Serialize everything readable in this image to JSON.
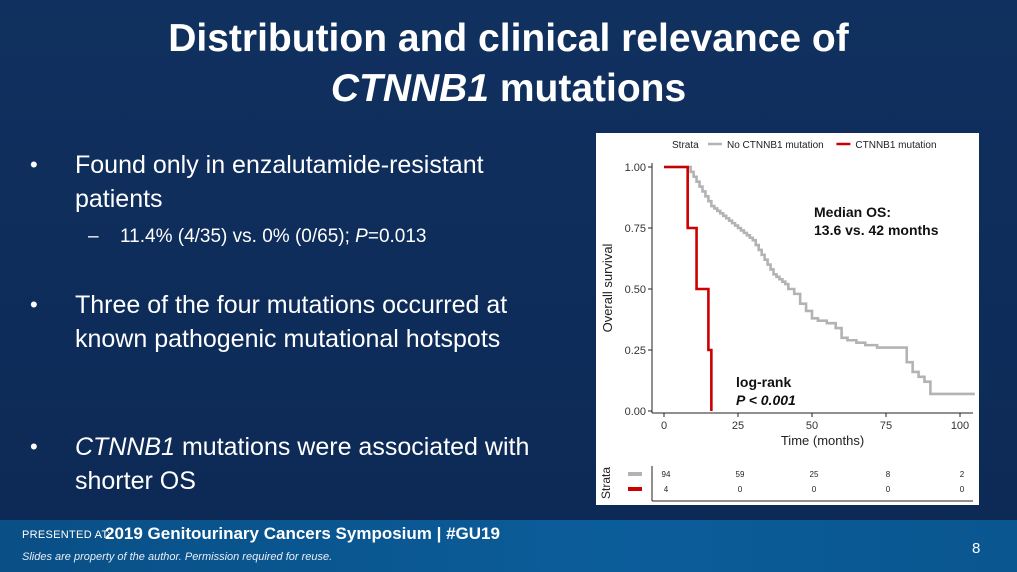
{
  "slide": {
    "title_line1": "Distribution and clinical relevance of",
    "title_line2_italic": "CTNNB1",
    "title_line2_rest": " mutations",
    "page_number": "8"
  },
  "bullets": [
    {
      "marker": "•",
      "text": "Found only in enzalutamide-resistant patients"
    },
    {
      "marker": "–",
      "text_a": "11.4% (4/35) vs. 0% (0/65); ",
      "text_italic": "P",
      "text_b": "=0.013"
    },
    {
      "marker": "•",
      "text": "Three of the four mutations occurred at known pathogenic mutational hotspots"
    },
    {
      "marker": "•",
      "text_italic": "CTNNB1",
      "text": " mutations were associated with shorter OS"
    }
  ],
  "footer": {
    "presented_at": "PRESENTED AT:",
    "conference": "2019 Genitourinary Cancers Symposium  |  #GU19",
    "disclaimer": "Slides are property of the author. Permission required for reuse."
  },
  "chart_data": {
    "type": "line",
    "subtype": "kaplan-meier",
    "xlabel": "Time (months)",
    "ylabel": "Overall survival",
    "xlim": [
      0,
      105
    ],
    "ylim": [
      0,
      1
    ],
    "x_ticks": [
      0,
      25,
      50,
      75,
      100
    ],
    "y_ticks": [
      "0.00",
      "0.25",
      "0.50",
      "0.75",
      "1.00"
    ],
    "legend_title": "Strata",
    "legend_position": "top",
    "annotation_median": [
      "Median OS:",
      "13.6 vs. 42 months"
    ],
    "annotation_logrank": [
      "log-rank",
      "P < 0.001"
    ],
    "series": [
      {
        "name": "No CTNNB1 mutation",
        "color": "#b3b3b3",
        "x": [
          0,
          8,
          9,
          10,
          11,
          12,
          13,
          14,
          15,
          16,
          17,
          18,
          19,
          20,
          21,
          22,
          23,
          24,
          25,
          26,
          27,
          28,
          29,
          30,
          31,
          32,
          33,
          34,
          35,
          36,
          37,
          38,
          39,
          40,
          41,
          42,
          44,
          46,
          48,
          50,
          52,
          55,
          58,
          60,
          62,
          65,
          68,
          72,
          76,
          78,
          80,
          82,
          84,
          86,
          88,
          90,
          95,
          105
        ],
        "y": [
          1.0,
          1.0,
          0.98,
          0.96,
          0.94,
          0.92,
          0.9,
          0.88,
          0.86,
          0.84,
          0.83,
          0.82,
          0.81,
          0.8,
          0.79,
          0.78,
          0.77,
          0.76,
          0.75,
          0.74,
          0.73,
          0.72,
          0.71,
          0.7,
          0.68,
          0.66,
          0.64,
          0.62,
          0.6,
          0.58,
          0.56,
          0.55,
          0.54,
          0.53,
          0.52,
          0.5,
          0.48,
          0.44,
          0.41,
          0.38,
          0.37,
          0.36,
          0.34,
          0.3,
          0.29,
          0.28,
          0.27,
          0.26,
          0.26,
          0.26,
          0.26,
          0.2,
          0.16,
          0.14,
          0.12,
          0.07,
          0.07,
          0.07
        ]
      },
      {
        "name": "CTNNB1 mutation",
        "color": "#cc0000",
        "x": [
          0,
          8,
          8,
          11,
          11,
          15,
          15,
          16,
          16
        ],
        "y": [
          1.0,
          1.0,
          0.75,
          0.75,
          0.5,
          0.5,
          0.25,
          0.25,
          0.0
        ]
      }
    ],
    "risk_table": {
      "label": "Strata",
      "times": [
        0,
        25,
        50,
        75,
        100
      ],
      "rows": [
        {
          "name": "No CTNNB1 mutation",
          "color": "#b3b3b3",
          "values": [
            "94",
            "59",
            "25",
            "8",
            "2"
          ]
        },
        {
          "name": "CTNNB1 mutation",
          "color": "#cc0000",
          "values": [
            "4",
            "0",
            "0",
            "0",
            "0"
          ]
        }
      ]
    }
  }
}
